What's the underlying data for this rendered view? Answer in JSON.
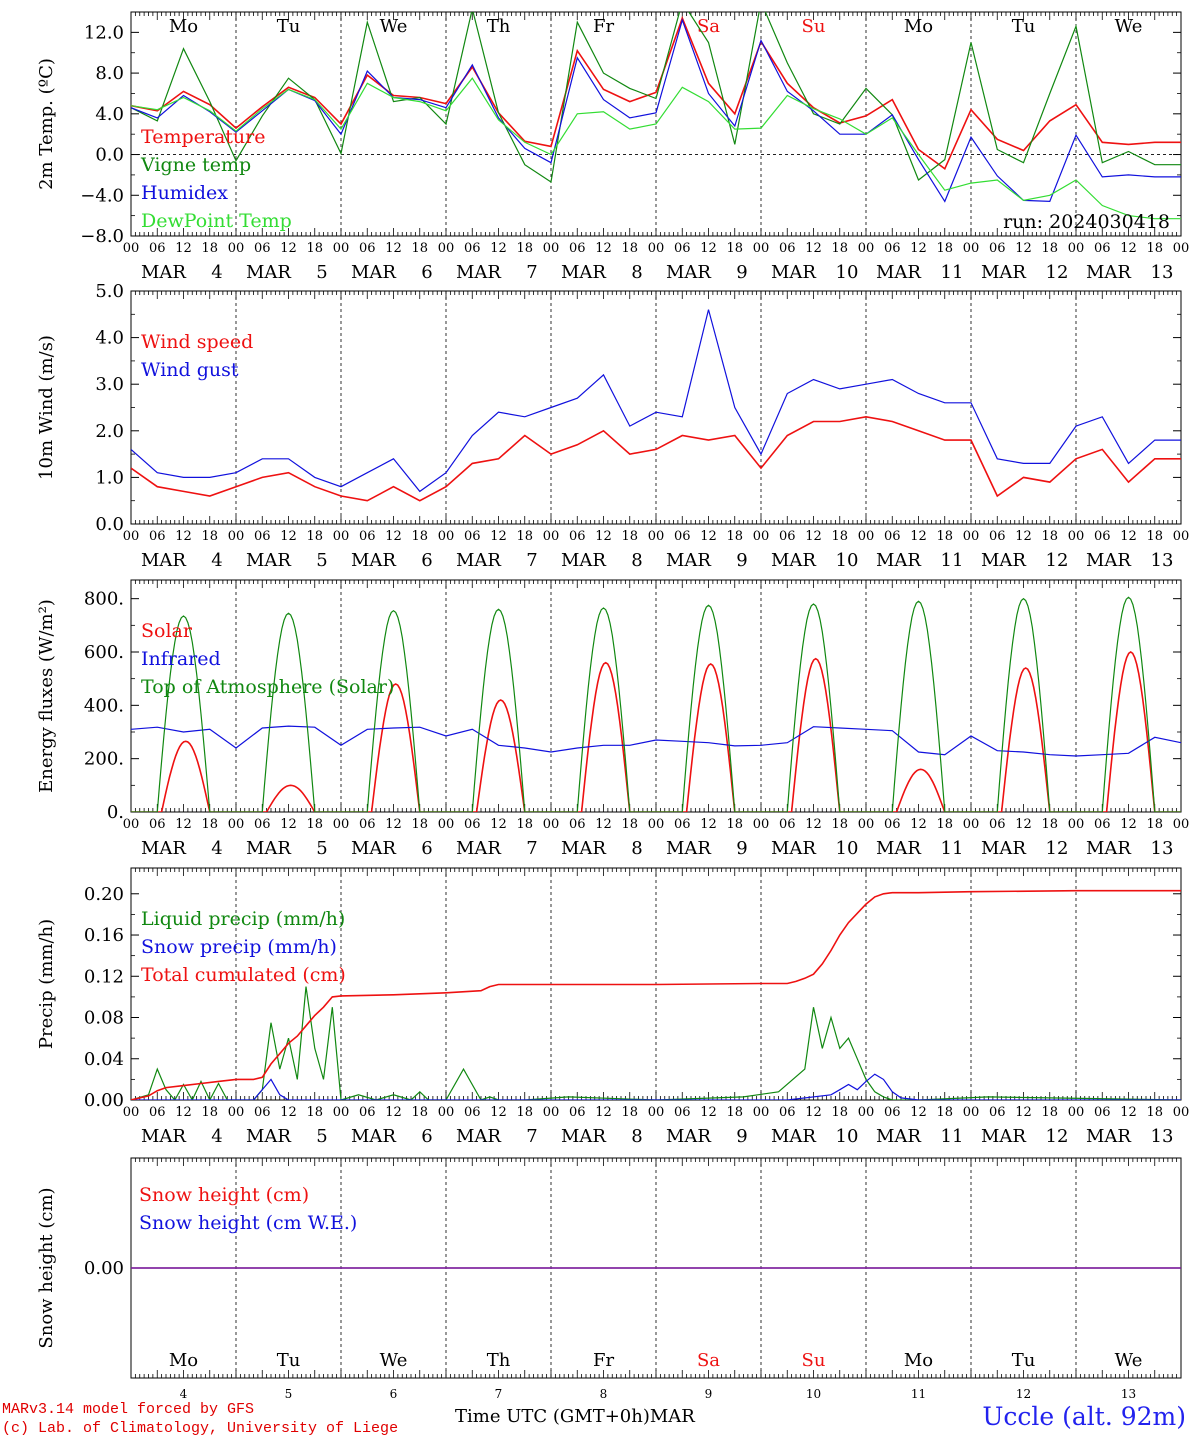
{
  "station_label": "Uccle (alt. 92m)",
  "credits": [
    "MARv3.14 model forced by GFS",
    "(c) Lab. of Climatology, University of Liege"
  ],
  "x_axis_title": "Time UTC (GMT+0h)MAR",
  "run_label": "run: 2024030418",
  "hour_ticks": [
    "00",
    "06",
    "12",
    "18"
  ],
  "final_hour_tick": "00",
  "days": [
    {
      "weekday": "Mo",
      "weekend": false,
      "month": "MAR",
      "day": "4"
    },
    {
      "weekday": "Tu",
      "weekend": false,
      "month": "MAR",
      "day": "5"
    },
    {
      "weekday": "We",
      "weekend": false,
      "month": "MAR",
      "day": "6"
    },
    {
      "weekday": "Th",
      "weekend": false,
      "month": "MAR",
      "day": "7"
    },
    {
      "weekday": "Fr",
      "weekend": false,
      "month": "MAR",
      "day": "8"
    },
    {
      "weekday": "Sa",
      "weekend": true,
      "month": "MAR",
      "day": "9"
    },
    {
      "weekday": "Su",
      "weekend": true,
      "month": "MAR",
      "day": "10"
    },
    {
      "weekday": "Mo",
      "weekend": false,
      "month": "MAR",
      "day": "11"
    },
    {
      "weekday": "Tu",
      "weekend": false,
      "month": "MAR",
      "day": "12"
    },
    {
      "weekday": "We",
      "weekend": false,
      "month": "MAR",
      "day": "13"
    }
  ],
  "colors": {
    "red": "#ee1111",
    "green": "#118811",
    "blue": "#1111dd",
    "lightgreen": "#33dd33",
    "purple": "#7a1a9a",
    "weekend": "#ee1111",
    "credit": "#e00000",
    "station": "#2222ee"
  },
  "chart_data": [
    {
      "id": "temperature",
      "type": "line",
      "ylabel": "2m Temp. (ºC)",
      "ylim": [
        -8,
        14
      ],
      "yticks": [
        -8,
        -4,
        0,
        4,
        8,
        12
      ],
      "ytick_labels": [
        "−8.0",
        "−4.0",
        "0.0",
        "4.0",
        "8.0",
        "12.0"
      ],
      "zero_line": true,
      "x_unit": "hours since MAR 4 00 UTC",
      "series": [
        {
          "name": "Temperature",
          "color": "red",
          "x": [
            0,
            6,
            12,
            18,
            24,
            30,
            36,
            42,
            48,
            54,
            60,
            66,
            72,
            78,
            84,
            90,
            96,
            102,
            108,
            114,
            120,
            126,
            132,
            138,
            144,
            150,
            156,
            162,
            168,
            174,
            180,
            186,
            192,
            198,
            204,
            210,
            216,
            222,
            228,
            234,
            240
          ],
          "y": [
            4.8,
            4.3,
            6.2,
            4.9,
            2.6,
            4.7,
            6.6,
            5.6,
            3.0,
            7.8,
            5.8,
            5.6,
            5.0,
            8.6,
            4.1,
            1.3,
            0.8,
            10.2,
            6.4,
            5.2,
            6.1,
            13.4,
            7.0,
            4.0,
            11.1,
            7.0,
            4.6,
            3.1,
            3.8,
            5.4,
            0.5,
            -1.4,
            4.4,
            1.5,
            0.4,
            3.3,
            4.9,
            1.2,
            1.0,
            1.2,
            1.2
          ]
        },
        {
          "name": "Vigne temp",
          "color": "green",
          "x": [
            0,
            6,
            12,
            18,
            24,
            30,
            36,
            42,
            48,
            54,
            60,
            66,
            72,
            78,
            84,
            90,
            96,
            102,
            108,
            114,
            120,
            126,
            132,
            138,
            144,
            150,
            156,
            162,
            168,
            174,
            180,
            186,
            192,
            198,
            204,
            210,
            216,
            222,
            228,
            234,
            240
          ],
          "y": [
            4.6,
            3.3,
            10.4,
            5.2,
            -0.6,
            3.8,
            7.5,
            5.4,
            0.1,
            13.0,
            5.2,
            5.6,
            3.0,
            14.3,
            4.1,
            -1.0,
            -2.7,
            13.0,
            8.0,
            6.5,
            5.5,
            15.0,
            11.0,
            1.0,
            15.0,
            9.0,
            4.0,
            3.0,
            6.5,
            3.9,
            -2.5,
            -0.5,
            11.0,
            0.5,
            -0.8,
            6.0,
            12.6,
            -0.8,
            0.3,
            -1.0,
            -1.0
          ]
        },
        {
          "name": "Humidex",
          "color": "blue",
          "x": [
            0,
            6,
            12,
            18,
            24,
            30,
            36,
            42,
            48,
            54,
            60,
            66,
            72,
            78,
            84,
            90,
            96,
            102,
            108,
            114,
            120,
            126,
            132,
            138,
            144,
            150,
            156,
            162,
            168,
            174,
            180,
            186,
            192,
            198,
            204,
            210,
            216,
            222,
            228,
            234,
            240
          ],
          "y": [
            4.6,
            3.6,
            5.8,
            4.2,
            2.2,
            4.3,
            6.4,
            5.3,
            2.0,
            8.2,
            5.6,
            5.4,
            4.6,
            8.8,
            3.6,
            0.6,
            -0.8,
            9.5,
            5.4,
            3.6,
            4.1,
            13.2,
            6.0,
            2.8,
            11.2,
            6.2,
            4.3,
            2.0,
            2.0,
            3.9,
            -0.5,
            -4.6,
            1.7,
            -2.1,
            -4.5,
            -4.6,
            1.9,
            -2.2,
            -2.0,
            -2.2,
            -2.2
          ]
        },
        {
          "name": "DewPoint Temp",
          "color": "lightgreen",
          "x": [
            0,
            6,
            12,
            18,
            24,
            30,
            36,
            42,
            48,
            54,
            60,
            66,
            72,
            78,
            84,
            90,
            96,
            102,
            108,
            114,
            120,
            126,
            132,
            138,
            144,
            150,
            156,
            162,
            168,
            174,
            180,
            186,
            192,
            198,
            204,
            210,
            216,
            222,
            228,
            234,
            240
          ],
          "y": [
            4.8,
            4.4,
            5.6,
            4.3,
            2.3,
            4.5,
            6.4,
            5.4,
            2.5,
            7.0,
            5.6,
            5.2,
            4.3,
            7.5,
            3.4,
            1.2,
            0.0,
            4.0,
            4.2,
            2.5,
            3.0,
            6.6,
            5.2,
            2.5,
            2.6,
            5.8,
            4.5,
            3.5,
            2.0,
            3.6,
            0.0,
            -3.5,
            -2.8,
            -2.5,
            -4.5,
            -4.0,
            -2.5,
            -5.0,
            -6.0,
            -6.3,
            -6.3
          ]
        }
      ]
    },
    {
      "id": "wind",
      "type": "line",
      "ylabel": "10m Wind (m/s)",
      "ylim": [
        0,
        5
      ],
      "yticks": [
        0,
        1,
        2,
        3,
        4,
        5
      ],
      "ytick_labels": [
        "0.0",
        "1.0",
        "2.0",
        "3.0",
        "4.0",
        "5.0"
      ],
      "x_unit": "hours since MAR 4 00 UTC",
      "series": [
        {
          "name": "Wind speed",
          "color": "red",
          "x": [
            0,
            6,
            12,
            18,
            24,
            30,
            36,
            42,
            48,
            54,
            60,
            66,
            72,
            78,
            84,
            90,
            96,
            102,
            108,
            114,
            120,
            126,
            132,
            138,
            144,
            150,
            156,
            162,
            168,
            174,
            180,
            186,
            192,
            198,
            204,
            210,
            216,
            222,
            228,
            234,
            240
          ],
          "y": [
            1.2,
            0.8,
            0.7,
            0.6,
            0.8,
            1.0,
            1.1,
            0.8,
            0.6,
            0.5,
            0.8,
            0.5,
            0.8,
            1.3,
            1.4,
            1.9,
            1.5,
            1.7,
            2.0,
            1.5,
            1.6,
            1.9,
            1.8,
            1.9,
            1.2,
            1.9,
            2.2,
            2.2,
            2.3,
            2.2,
            2.0,
            1.8,
            1.8,
            0.6,
            1.0,
            0.9,
            1.4,
            1.6,
            0.9,
            1.4,
            1.4
          ]
        },
        {
          "name": "Wind gust",
          "color": "blue",
          "x": [
            0,
            6,
            12,
            18,
            24,
            30,
            36,
            42,
            48,
            54,
            60,
            66,
            72,
            78,
            84,
            90,
            96,
            102,
            108,
            114,
            120,
            126,
            132,
            138,
            144,
            150,
            156,
            162,
            168,
            174,
            180,
            186,
            192,
            198,
            204,
            210,
            216,
            222,
            228,
            234,
            240
          ],
          "y": [
            1.6,
            1.1,
            1.0,
            1.0,
            1.1,
            1.4,
            1.4,
            1.0,
            0.8,
            1.1,
            1.4,
            0.7,
            1.1,
            1.9,
            2.4,
            2.3,
            2.5,
            2.7,
            3.2,
            2.1,
            2.4,
            2.3,
            4.6,
            2.5,
            1.5,
            2.8,
            3.1,
            2.9,
            3.0,
            3.1,
            2.8,
            2.6,
            2.6,
            1.4,
            1.3,
            1.3,
            2.1,
            2.3,
            1.3,
            1.8,
            1.8
          ]
        }
      ]
    },
    {
      "id": "energy",
      "type": "line",
      "ylabel": "Energy fluxes (W/m²)",
      "ylim": [
        0,
        870
      ],
      "yticks": [
        0,
        200,
        400,
        600,
        800
      ],
      "ytick_labels": [
        "0.",
        "200.",
        "400.",
        "600.",
        "800."
      ],
      "x_unit": "hours since MAR 4 00 UTC",
      "series": [
        {
          "name": "Solar",
          "color": "red",
          "peak_hour": 12.5,
          "half_width_hours": 5.5,
          "daily_peaks": [
            265,
            100,
            480,
            420,
            560,
            555,
            575,
            160,
            540,
            600
          ]
        },
        {
          "name": "Infrared",
          "color": "blue",
          "x": [
            0,
            6,
            12,
            18,
            24,
            30,
            36,
            42,
            48,
            54,
            60,
            66,
            72,
            78,
            84,
            90,
            96,
            102,
            108,
            114,
            120,
            126,
            132,
            138,
            144,
            150,
            156,
            162,
            168,
            174,
            180,
            186,
            192,
            198,
            204,
            210,
            216,
            222,
            228,
            234,
            240
          ],
          "y": [
            310,
            318,
            300,
            310,
            240,
            315,
            322,
            318,
            250,
            310,
            315,
            318,
            285,
            310,
            250,
            240,
            225,
            240,
            250,
            250,
            270,
            265,
            260,
            248,
            250,
            260,
            320,
            315,
            310,
            305,
            225,
            215,
            285,
            230,
            225,
            215,
            210,
            215,
            220,
            280,
            260
          ]
        },
        {
          "name": "Top of Atmosphere (Solar)",
          "color": "green",
          "peak_hour": 12,
          "half_width_hours": 6,
          "daily_peaks": [
            735,
            745,
            755,
            760,
            765,
            775,
            780,
            790,
            800,
            805
          ]
        }
      ]
    },
    {
      "id": "precip",
      "type": "line",
      "ylabel": "Precip (mm/h)",
      "ylim": [
        0,
        0.225
      ],
      "yticks": [
        0,
        0.04,
        0.08,
        0.12,
        0.16,
        0.2
      ],
      "ytick_labels": [
        "0.00",
        "0.04",
        "0.08",
        "0.12",
        "0.16",
        "0.20"
      ],
      "x_unit": "hours since MAR 4 00 UTC",
      "series": [
        {
          "name": "Liquid precip (mm/h)",
          "color": "green",
          "x": [
            0,
            4,
            6,
            8,
            10,
            12,
            14,
            16,
            18,
            20,
            22,
            24,
            28,
            30,
            32,
            34,
            36,
            38,
            40,
            42,
            44,
            46,
            48,
            52,
            56,
            60,
            64,
            66,
            68,
            70,
            72,
            76,
            80,
            82,
            84,
            90,
            100,
            120,
            140,
            148,
            154,
            156,
            158,
            160,
            162,
            164,
            166,
            168,
            170,
            172,
            174,
            176,
            180,
            196,
            210,
            240
          ],
          "y": [
            0,
            0.005,
            0.03,
            0.01,
            0.0,
            0.015,
            0.0,
            0.018,
            0.0,
            0.016,
            0.0,
            0,
            0,
            0.01,
            0.075,
            0.03,
            0.06,
            0.02,
            0.11,
            0.05,
            0.02,
            0.09,
            0,
            0.005,
            0,
            0.005,
            0,
            0.008,
            0,
            0.0,
            0,
            0.03,
            0,
            0.003,
            0,
            0,
            0.003,
            0,
            0.003,
            0.008,
            0.03,
            0.09,
            0.05,
            0.08,
            0.05,
            0.06,
            0.04,
            0.02,
            0.008,
            0.003,
            0.0,
            0,
            0,
            0.003,
            0.002,
            0
          ]
        },
        {
          "name": "Snow precip (mm/h)",
          "color": "blue",
          "x": [
            0,
            28,
            32,
            34,
            36,
            40,
            150,
            160,
            162,
            164,
            166,
            168,
            170,
            172,
            174,
            176,
            180,
            240
          ],
          "y": [
            0,
            0,
            0.02,
            0.005,
            0,
            0,
            0,
            0.005,
            0.01,
            0.015,
            0.01,
            0.018,
            0.025,
            0.02,
            0.008,
            0.002,
            0,
            0
          ]
        },
        {
          "name": "Total cumulated (cm)",
          "color": "red",
          "x": [
            0,
            2,
            4,
            6,
            8,
            12,
            16,
            20,
            24,
            28,
            30,
            32,
            34,
            36,
            38,
            40,
            42,
            44,
            46,
            48,
            60,
            72,
            80,
            82,
            84,
            96,
            120,
            144,
            150,
            152,
            154,
            156,
            158,
            160,
            162,
            164,
            168,
            170,
            172,
            174,
            176,
            180,
            192,
            216,
            240
          ],
          "y": [
            0,
            0.002,
            0.004,
            0.009,
            0.012,
            0.014,
            0.016,
            0.018,
            0.02,
            0.02,
            0.022,
            0.035,
            0.045,
            0.055,
            0.062,
            0.072,
            0.082,
            0.09,
            0.1,
            0.101,
            0.102,
            0.104,
            0.106,
            0.11,
            0.112,
            0.112,
            0.112,
            0.113,
            0.113,
            0.115,
            0.118,
            0.122,
            0.132,
            0.145,
            0.16,
            0.172,
            0.19,
            0.197,
            0.2,
            0.201,
            0.201,
            0.201,
            0.202,
            0.203,
            0.203
          ]
        }
      ]
    },
    {
      "id": "snow",
      "type": "line",
      "ylabel": "Snow height (cm)",
      "yticks": [
        0
      ],
      "ytick_labels": [
        "0.00"
      ],
      "x_unit": "hours since MAR 4 00 UTC",
      "series": [
        {
          "name": "Snow height (cm)",
          "color": "red",
          "x": [
            0,
            240
          ],
          "y": [
            0,
            0
          ]
        },
        {
          "name": "Snow height (cm W.E.)",
          "color": "blue",
          "x": [
            0,
            240
          ],
          "y": [
            0,
            0
          ]
        }
      ]
    }
  ]
}
